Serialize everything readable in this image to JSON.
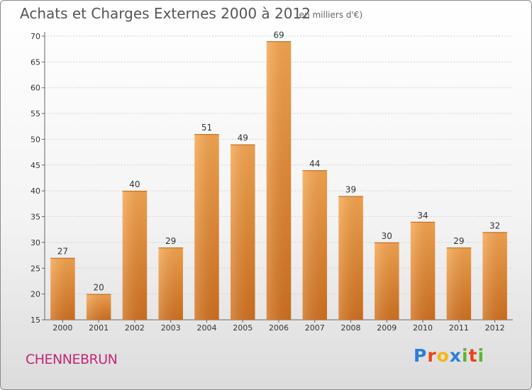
{
  "chart_data": {
    "type": "bar",
    "title": "Achats et Charges Externes 2000 à 2012",
    "subtitle": "(en milliers d'€)",
    "categories": [
      "2000",
      "2001",
      "2002",
      "2003",
      "2004",
      "2005",
      "2006",
      "2007",
      "2008",
      "2009",
      "2010",
      "2011",
      "2012"
    ],
    "values": [
      27,
      20,
      40,
      29,
      51,
      49,
      69,
      44,
      39,
      30,
      34,
      29,
      32
    ],
    "ylim": [
      15,
      70
    ],
    "yticks": [
      15,
      20,
      25,
      30,
      35,
      40,
      45,
      50,
      55,
      60,
      65,
      70
    ],
    "grid": true,
    "bar_color_top": "#f7a64f",
    "bar_color_bottom": "#d2711e"
  },
  "footer": {
    "town": "CHENNEBRUN",
    "brand_letters": [
      "P",
      "r",
      "o",
      "x",
      "i",
      "t",
      "i"
    ],
    "brand_colors": [
      "#2a7fd4",
      "#e8441e",
      "#f2b716",
      "#2a7fd4",
      "#5cb531",
      "#e8441e",
      "#5cb531"
    ]
  }
}
